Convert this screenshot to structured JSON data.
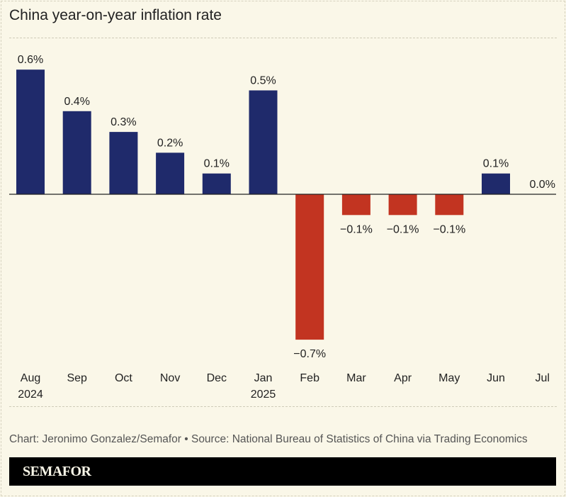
{
  "chart_data": {
    "type": "bar",
    "title": "China year-on-year inflation rate",
    "categories": [
      "Aug",
      "Sep",
      "Oct",
      "Nov",
      "Dec",
      "Jan",
      "Feb",
      "Mar",
      "Apr",
      "May",
      "Jun",
      "Jul"
    ],
    "category_sublabels": [
      "2024",
      "",
      "",
      "",
      "",
      "2025",
      "",
      "",
      "",
      "",
      "",
      ""
    ],
    "values": [
      0.6,
      0.4,
      0.3,
      0.2,
      0.1,
      0.5,
      -0.7,
      -0.1,
      -0.1,
      -0.1,
      0.1,
      0.0
    ],
    "data_labels": [
      "0.6%",
      "0.4%",
      "0.3%",
      "0.2%",
      "0.1%",
      "0.5%",
      "−0.7%",
      "−0.1%",
      "−0.1%",
      "−0.1%",
      "0.1%",
      "0.0%"
    ],
    "unit": "%",
    "ylim": [
      -0.7,
      0.6
    ],
    "grid": false,
    "colors": {
      "positive": "#1f2a6b",
      "negative": "#c23421",
      "baseline": "#222222"
    }
  },
  "footer": {
    "credit": "Chart: Jeronimo Gonzalez/Semafor • Source: National Bureau of Statistics of China via Trading Economics",
    "brand": "SEMAFOR"
  }
}
